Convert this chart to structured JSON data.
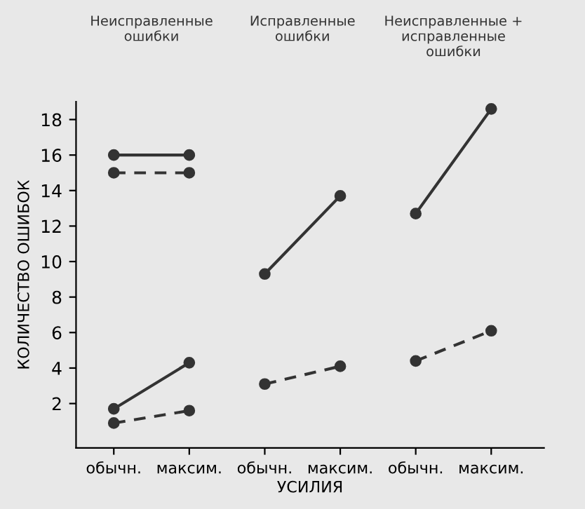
{
  "chart_data": {
    "type": "line",
    "xlabel": "УСИЛИЯ",
    "ylabel": "КОЛИЧЕСТВО ОШИБОК",
    "annotations": [
      "Неисправленные\nошибки",
      "Исправленные\nошибки",
      "Неисправленные +\nисправленные\nошибки"
    ],
    "categories": [
      "обычн.",
      "максим.",
      "обычн.",
      "максим.",
      "обычн.",
      "максим."
    ],
    "series": [
      {
        "color": "#333333",
        "line_style": "solid",
        "values": [
          16,
          16,
          null,
          null,
          null,
          null
        ]
      },
      {
        "color": "#333333",
        "line_style": "dashed",
        "values": [
          15,
          15,
          null,
          null,
          null,
          null
        ]
      },
      {
        "color": "#333333",
        "line_style": "solid",
        "values": [
          1.7,
          4.3,
          null,
          null,
          null,
          null
        ]
      },
      {
        "color": "#333333",
        "line_style": "dashed",
        "values": [
          0.9,
          1.6,
          null,
          null,
          null,
          null
        ]
      },
      {
        "color": "#333333",
        "line_style": "solid",
        "values": [
          null,
          null,
          9.3,
          13.7,
          null,
          null
        ]
      },
      {
        "color": "#333333",
        "line_style": "dashed",
        "values": [
          null,
          null,
          3.1,
          4.1,
          null,
          null
        ]
      },
      {
        "color": "#333333",
        "line_style": "solid",
        "values": [
          null,
          null,
          null,
          null,
          12.7,
          18.6
        ]
      },
      {
        "color": "#333333",
        "line_style": "dashed",
        "values": [
          null,
          null,
          null,
          null,
          4.4,
          6.1
        ]
      }
    ],
    "ylim": [
      -0.5,
      19
    ],
    "yticks": [
      2,
      4,
      6,
      8,
      10,
      12,
      14,
      16,
      18
    ],
    "marker": "circle",
    "grid": false,
    "legend": false
  }
}
